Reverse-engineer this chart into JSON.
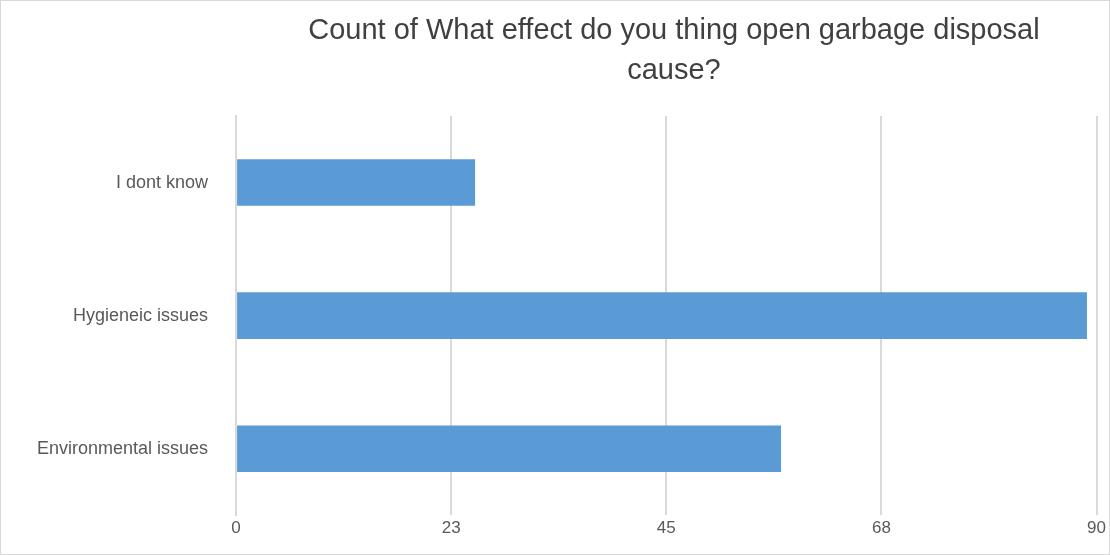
{
  "chart_data": {
    "type": "bar",
    "orientation": "horizontal",
    "title": "Count of What effect do you thing open garbage disposal cause?",
    "categories": [
      "I dont know",
      "Hygieneic issues",
      "Environmental issues"
    ],
    "values": [
      25,
      89,
      57
    ],
    "color": "#5b9bd5",
    "xlim": [
      0,
      90
    ],
    "xticks": [
      0,
      {
        "value": 22.5,
        "label": "23"
      },
      45,
      {
        "value": 67.5,
        "label": "68"
      },
      90
    ],
    "grid": "x",
    "legend": false
  }
}
